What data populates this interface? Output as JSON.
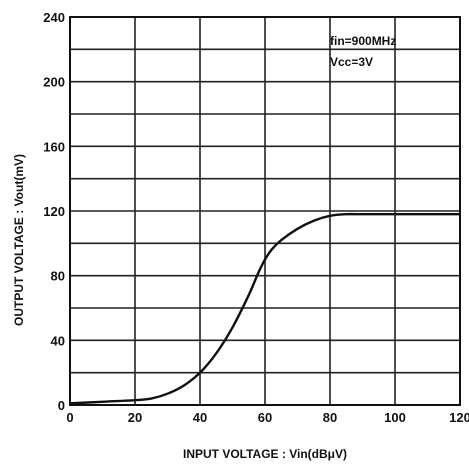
{
  "chart_data": {
    "type": "line",
    "xlabel": "INPUT VOLTAGE : Vin(dBμV)",
    "ylabel": "OUTPUT VOLTAGE : Vout(mV)",
    "xlim": [
      0,
      120
    ],
    "ylim": [
      0,
      240
    ],
    "x_ticks": [
      "0",
      "20",
      "40",
      "60",
      "80",
      "100",
      "120"
    ],
    "y_ticks": [
      "0",
      "40",
      "80",
      "120",
      "160",
      "200",
      "240"
    ],
    "x_grid_step": 20,
    "y_grid_step": 20,
    "grid": true,
    "conditions": [
      "fin=900MHz",
      "Vcc=3V"
    ],
    "conditions_placement": "top-right",
    "series": [
      {
        "x": [
          0,
          10,
          20,
          25,
          30,
          35,
          40,
          45,
          50,
          55,
          58,
          60,
          62,
          65,
          70,
          75,
          80,
          85,
          90,
          100,
          120
        ],
        "y": [
          1,
          2,
          3,
          4,
          7,
          12,
          20,
          32,
          48,
          68,
          82,
          90,
          96,
          102,
          109,
          114,
          117,
          118,
          118,
          118,
          118
        ]
      }
    ]
  }
}
